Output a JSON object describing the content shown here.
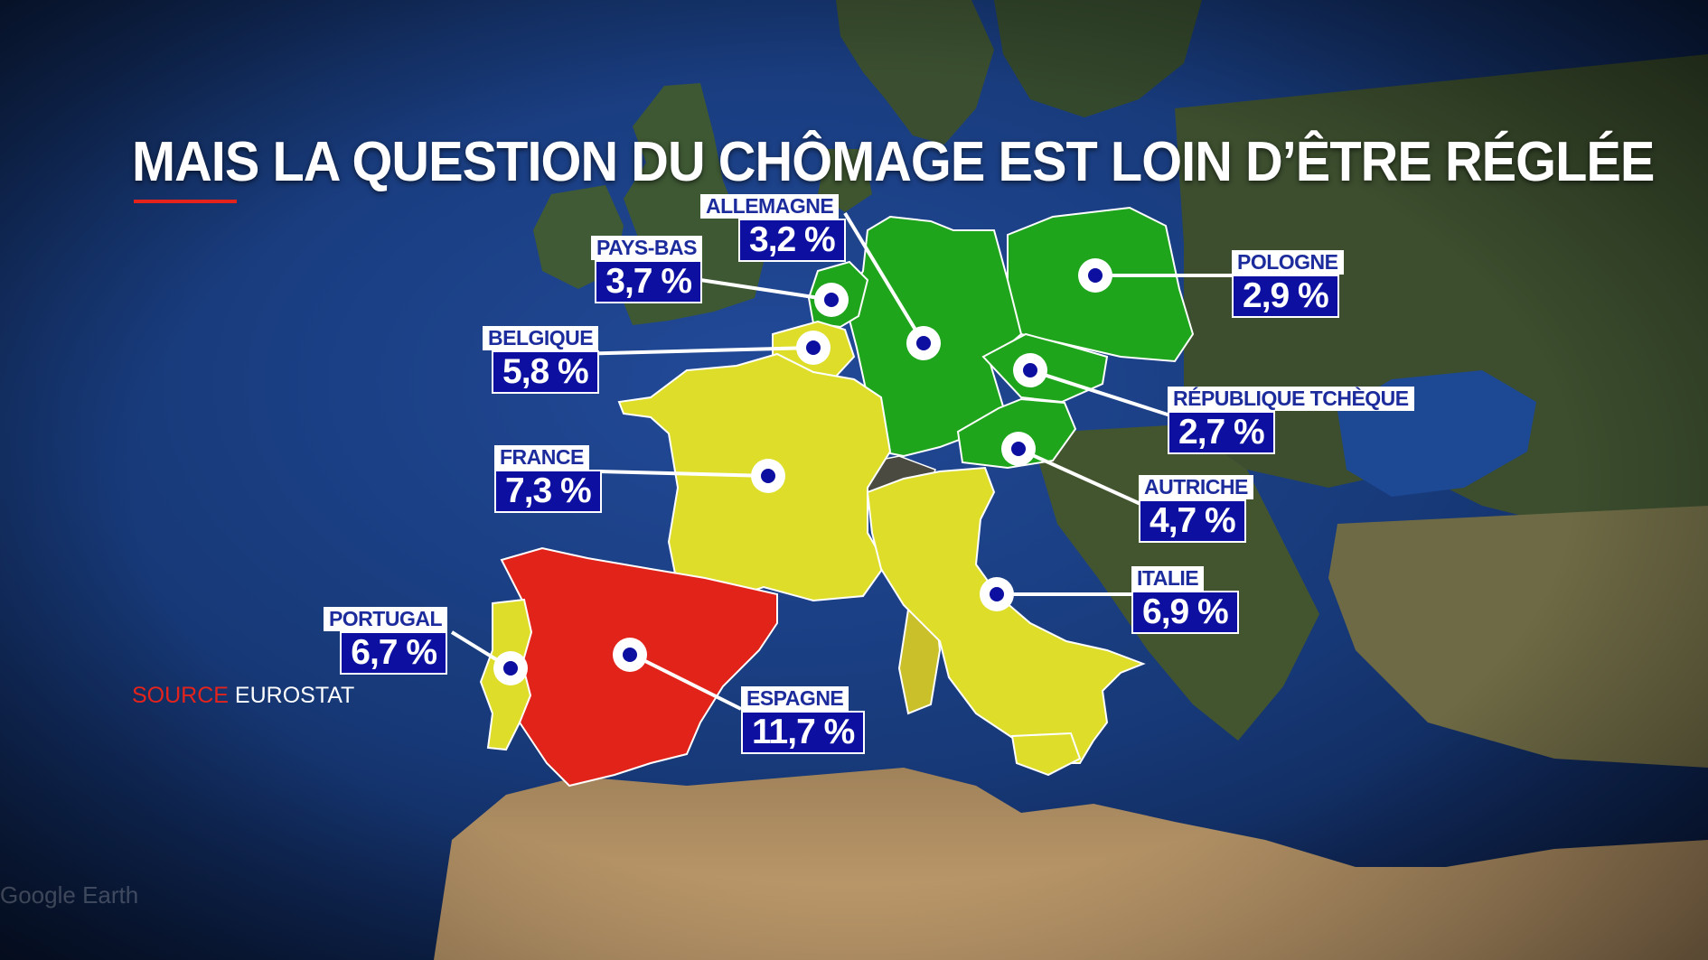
{
  "title": "MAIS LA QUESTION DU CHÔMAGE EST LOIN D’ÊTRE RÉGLÉE",
  "source": {
    "label": "SOURCE",
    "name": "EUROSTAT"
  },
  "watermark": "Google Earth",
  "legend_colors": {
    "low": "#1fa51c",
    "medium": "#dede2a",
    "high": "#e2231a"
  },
  "countries": [
    {
      "id": "allemagne",
      "name": "ALLEMAGNE",
      "value": "3,2 %",
      "rate": 3.2,
      "band": "low"
    },
    {
      "id": "pays-bas",
      "name": "PAYS-BAS",
      "value": "3,7 %",
      "rate": 3.7,
      "band": "low"
    },
    {
      "id": "belgique",
      "name": "BELGIQUE",
      "value": "5,8 %",
      "rate": 5.8,
      "band": "medium"
    },
    {
      "id": "france",
      "name": "FRANCE",
      "value": "7,3 %",
      "rate": 7.3,
      "band": "medium"
    },
    {
      "id": "portugal",
      "name": "PORTUGAL",
      "value": "6,7 %",
      "rate": 6.7,
      "band": "medium"
    },
    {
      "id": "espagne",
      "name": "ESPAGNE",
      "value": "11,7 %",
      "rate": 11.7,
      "band": "high"
    },
    {
      "id": "pologne",
      "name": "POLOGNE",
      "value": "2,9 %",
      "rate": 2.9,
      "band": "low"
    },
    {
      "id": "republique-tcheque",
      "name": "RÉPUBLIQUE TCHÈQUE",
      "value": "2,7 %",
      "rate": 2.7,
      "band": "low"
    },
    {
      "id": "autriche",
      "name": "AUTRICHE",
      "value": "4,7 %",
      "rate": 4.7,
      "band": "low"
    },
    {
      "id": "italie",
      "name": "ITALIE",
      "value": "6,9 %",
      "rate": 6.9,
      "band": "medium"
    }
  ]
}
